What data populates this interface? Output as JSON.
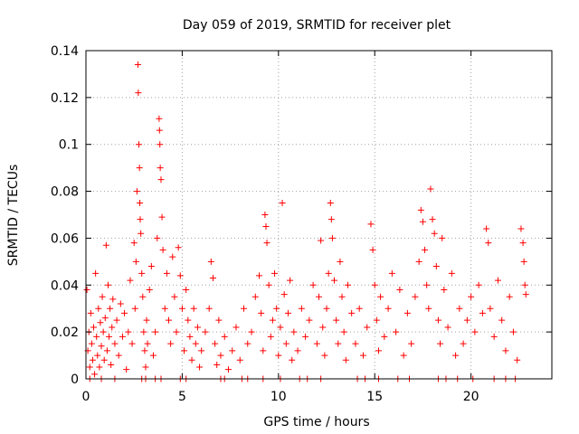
{
  "chart_data": {
    "type": "scatter",
    "title": "Day 059 of 2019, SRMTID for receiver plet",
    "xlabel": "GPS time / hours",
    "ylabel": "SRMTID / TECUs",
    "xlim": [
      0,
      24.2
    ],
    "ylim": [
      0,
      0.14
    ],
    "x_ticks": [
      0,
      5,
      10,
      15,
      20
    ],
    "x_tick_labels": [
      "0",
      "5",
      "10",
      "15",
      "20"
    ],
    "y_ticks": [
      0,
      0.02,
      0.04,
      0.06,
      0.08,
      0.1,
      0.12,
      0.14
    ],
    "y_tick_labels": [
      "0",
      "0.02",
      "0.04",
      "0.06",
      "0.08",
      "0.1",
      "0.12",
      "0.14"
    ],
    "grid": true,
    "series": [
      {
        "name": "SRMTID",
        "color": "#ff0000",
        "marker": "plus",
        "points": [
          [
            0.05,
            0.038
          ],
          [
            0.1,
            0.012
          ],
          [
            0.15,
            0.02
          ],
          [
            0.2,
            0.005
          ],
          [
            0.25,
            0.028
          ],
          [
            0.3,
            0.015
          ],
          [
            0.35,
            0.008
          ],
          [
            0.4,
            0.022
          ],
          [
            0.45,
            0.002
          ],
          [
            0.5,
            0.045
          ],
          [
            0.55,
            0.018
          ],
          [
            0.6,
            0.01
          ],
          [
            0.65,
            0.03
          ],
          [
            0.7,
            0.005
          ],
          [
            0.75,
            0.024
          ],
          [
            0.8,
            0.014
          ],
          [
            0.85,
            0.035
          ],
          [
            0.9,
            0.02
          ],
          [
            0.95,
            0.008
          ],
          [
            1.0,
            0.026
          ],
          [
            1.05,
            0.057
          ],
          [
            1.1,
            0.012
          ],
          [
            1.15,
            0.04
          ],
          [
            1.2,
            0.018
          ],
          [
            1.25,
            0.03
          ],
          [
            1.3,
            0.006
          ],
          [
            1.35,
            0.022
          ],
          [
            1.4,
            0.034
          ],
          [
            1.5,
            0.015
          ],
          [
            1.6,
            0.025
          ],
          [
            1.7,
            0.01
          ],
          [
            1.8,
            0.032
          ],
          [
            1.9,
            0.018
          ],
          [
            2.0,
            0.028
          ],
          [
            2.1,
            0.004
          ],
          [
            2.2,
            0.02
          ],
          [
            2.3,
            0.042
          ],
          [
            2.4,
            0.015
          ],
          [
            2.5,
            0.058
          ],
          [
            2.55,
            0.03
          ],
          [
            2.6,
            0.05
          ],
          [
            2.65,
            0.08
          ],
          [
            2.7,
            0.134
          ],
          [
            2.72,
            0.122
          ],
          [
            2.75,
            0.1
          ],
          [
            2.78,
            0.09
          ],
          [
            2.8,
            0.075
          ],
          [
            2.82,
            0.068
          ],
          [
            2.85,
            0.062
          ],
          [
            2.9,
            0.045
          ],
          [
            2.95,
            0.035
          ],
          [
            3.0,
            0.02
          ],
          [
            3.05,
            0.012
          ],
          [
            3.1,
            0.005
          ],
          [
            3.15,
            0.025
          ],
          [
            3.2,
            0.015
          ],
          [
            3.3,
            0.038
          ],
          [
            3.4,
            0.048
          ],
          [
            3.5,
            0.01
          ],
          [
            3.6,
            0.02
          ],
          [
            3.7,
            0.06
          ],
          [
            3.8,
            0.111
          ],
          [
            3.82,
            0.106
          ],
          [
            3.84,
            0.1
          ],
          [
            3.86,
            0.09
          ],
          [
            3.9,
            0.085
          ],
          [
            3.95,
            0.069
          ],
          [
            4.0,
            0.055
          ],
          [
            4.1,
            0.03
          ],
          [
            4.2,
            0.045
          ],
          [
            4.3,
            0.025
          ],
          [
            4.4,
            0.015
          ],
          [
            4.5,
            0.052
          ],
          [
            4.6,
            0.035
          ],
          [
            4.7,
            0.02
          ],
          [
            4.8,
            0.056
          ],
          [
            4.9,
            0.044
          ],
          [
            5.0,
            0.03
          ],
          [
            5.1,
            0.012
          ],
          [
            5.2,
            0.038
          ],
          [
            5.3,
            0.025
          ],
          [
            5.4,
            0.018
          ],
          [
            5.5,
            0.008
          ],
          [
            5.6,
            0.03
          ],
          [
            5.7,
            0.015
          ],
          [
            5.8,
            0.022
          ],
          [
            5.9,
            0.005
          ],
          [
            6.0,
            0.012
          ],
          [
            6.2,
            0.02
          ],
          [
            6.4,
            0.03
          ],
          [
            6.5,
            0.05
          ],
          [
            6.6,
            0.043
          ],
          [
            6.7,
            0.015
          ],
          [
            6.8,
            0.006
          ],
          [
            6.9,
            0.025
          ],
          [
            7.0,
            0.01
          ],
          [
            7.2,
            0.018
          ],
          [
            7.4,
            0.004
          ],
          [
            7.6,
            0.012
          ],
          [
            7.8,
            0.022
          ],
          [
            8.0,
            0.008
          ],
          [
            8.2,
            0.03
          ],
          [
            8.4,
            0.015
          ],
          [
            8.6,
            0.02
          ],
          [
            8.8,
            0.035
          ],
          [
            9.0,
            0.044
          ],
          [
            9.1,
            0.028
          ],
          [
            9.2,
            0.012
          ],
          [
            9.3,
            0.07
          ],
          [
            9.35,
            0.065
          ],
          [
            9.4,
            0.058
          ],
          [
            9.5,
            0.04
          ],
          [
            9.6,
            0.018
          ],
          [
            9.7,
            0.025
          ],
          [
            9.8,
            0.045
          ],
          [
            9.9,
            0.03
          ],
          [
            10.0,
            0.01
          ],
          [
            10.1,
            0.022
          ],
          [
            10.2,
            0.075
          ],
          [
            10.3,
            0.036
          ],
          [
            10.4,
            0.015
          ],
          [
            10.5,
            0.028
          ],
          [
            10.6,
            0.042
          ],
          [
            10.7,
            0.008
          ],
          [
            10.8,
            0.02
          ],
          [
            11.0,
            0.012
          ],
          [
            11.2,
            0.03
          ],
          [
            11.4,
            0.018
          ],
          [
            11.6,
            0.025
          ],
          [
            11.8,
            0.04
          ],
          [
            12.0,
            0.015
          ],
          [
            12.1,
            0.035
          ],
          [
            12.2,
            0.059
          ],
          [
            12.3,
            0.022
          ],
          [
            12.4,
            0.01
          ],
          [
            12.5,
            0.03
          ],
          [
            12.6,
            0.045
          ],
          [
            12.7,
            0.075
          ],
          [
            12.75,
            0.068
          ],
          [
            12.8,
            0.06
          ],
          [
            12.9,
            0.042
          ],
          [
            13.0,
            0.025
          ],
          [
            13.1,
            0.015
          ],
          [
            13.2,
            0.05
          ],
          [
            13.3,
            0.035
          ],
          [
            13.4,
            0.02
          ],
          [
            13.5,
            0.008
          ],
          [
            13.6,
            0.04
          ],
          [
            13.8,
            0.028
          ],
          [
            14.0,
            0.015
          ],
          [
            14.2,
            0.03
          ],
          [
            14.4,
            0.01
          ],
          [
            14.6,
            0.022
          ],
          [
            14.8,
            0.066
          ],
          [
            14.9,
            0.055
          ],
          [
            15.0,
            0.04
          ],
          [
            15.1,
            0.025
          ],
          [
            15.2,
            0.012
          ],
          [
            15.3,
            0.035
          ],
          [
            15.5,
            0.018
          ],
          [
            15.7,
            0.03
          ],
          [
            15.9,
            0.045
          ],
          [
            16.1,
            0.02
          ],
          [
            16.3,
            0.038
          ],
          [
            16.5,
            0.01
          ],
          [
            16.7,
            0.028
          ],
          [
            16.9,
            0.015
          ],
          [
            17.1,
            0.035
          ],
          [
            17.3,
            0.05
          ],
          [
            17.4,
            0.072
          ],
          [
            17.5,
            0.067
          ],
          [
            17.6,
            0.055
          ],
          [
            17.7,
            0.04
          ],
          [
            17.8,
            0.03
          ],
          [
            17.9,
            0.081
          ],
          [
            18.0,
            0.068
          ],
          [
            18.1,
            0.062
          ],
          [
            18.2,
            0.048
          ],
          [
            18.3,
            0.025
          ],
          [
            18.4,
            0.015
          ],
          [
            18.5,
            0.06
          ],
          [
            18.6,
            0.038
          ],
          [
            18.8,
            0.022
          ],
          [
            19.0,
            0.045
          ],
          [
            19.2,
            0.01
          ],
          [
            19.4,
            0.03
          ],
          [
            19.6,
            0.015
          ],
          [
            19.8,
            0.025
          ],
          [
            20.0,
            0.035
          ],
          [
            20.2,
            0.02
          ],
          [
            20.4,
            0.04
          ],
          [
            20.6,
            0.028
          ],
          [
            20.8,
            0.064
          ],
          [
            20.9,
            0.058
          ],
          [
            21.0,
            0.03
          ],
          [
            21.2,
            0.018
          ],
          [
            21.4,
            0.042
          ],
          [
            21.6,
            0.025
          ],
          [
            21.8,
            0.012
          ],
          [
            22.0,
            0.035
          ],
          [
            22.2,
            0.02
          ],
          [
            22.4,
            0.008
          ],
          [
            22.6,
            0.064
          ],
          [
            22.7,
            0.058
          ],
          [
            22.75,
            0.05
          ],
          [
            22.8,
            0.04
          ],
          [
            22.85,
            0.036
          ],
          [
            0.2,
            0
          ],
          [
            0.8,
            0
          ],
          [
            1.5,
            0
          ],
          [
            2.9,
            0
          ],
          [
            3.1,
            0
          ],
          [
            3.6,
            0
          ],
          [
            3.9,
            0
          ],
          [
            4.9,
            0
          ],
          [
            5.2,
            0
          ],
          [
            7.0,
            0
          ],
          [
            7.2,
            0
          ],
          [
            8.1,
            0
          ],
          [
            8.4,
            0
          ],
          [
            9.2,
            0
          ],
          [
            10.1,
            0
          ],
          [
            11.1,
            0
          ],
          [
            11.5,
            0
          ],
          [
            12.2,
            0
          ],
          [
            14.1,
            0
          ],
          [
            14.5,
            0
          ],
          [
            15.2,
            0
          ],
          [
            16.2,
            0
          ],
          [
            16.8,
            0
          ],
          [
            18.3,
            0
          ],
          [
            18.7,
            0
          ],
          [
            19.3,
            0
          ],
          [
            20.1,
            0
          ],
          [
            21.2,
            0
          ],
          [
            21.8,
            0
          ],
          [
            22.3,
            0
          ]
        ]
      }
    ]
  }
}
